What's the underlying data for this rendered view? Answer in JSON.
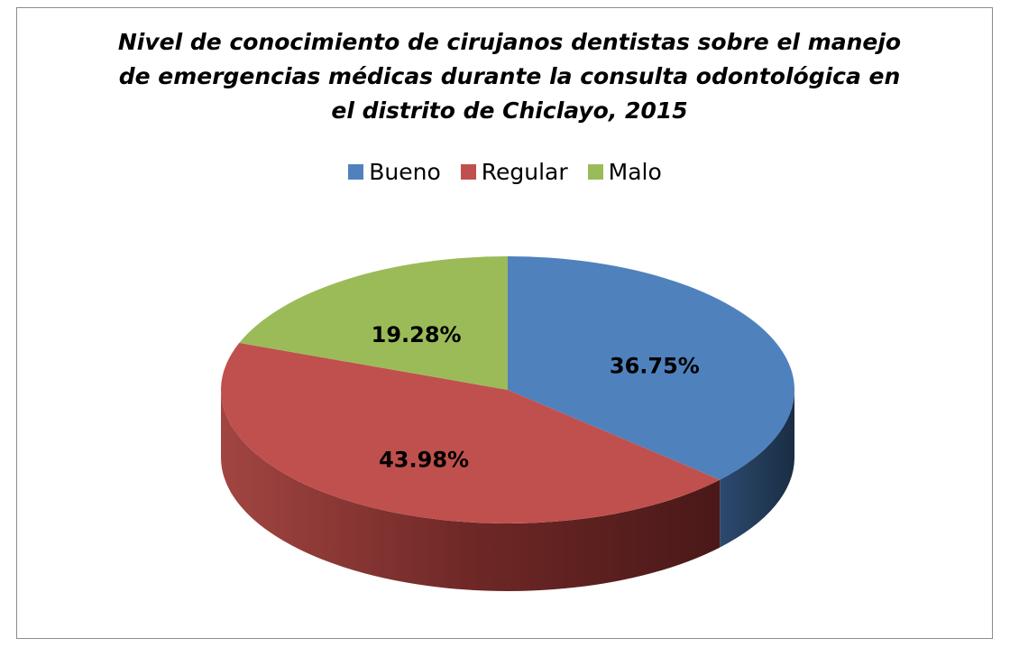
{
  "chart_data": {
    "type": "pie",
    "title": "Nivel de conocimiento de cirujanos dentistas sobre el manejo de emergencias médicas durante la consulta odontológica en el distrito de Chiclayo, 2015",
    "categories": [
      "Bueno",
      "Regular",
      "Malo"
    ],
    "values": [
      36.75,
      43.98,
      19.28
    ],
    "value_labels": [
      "36.75%",
      "43.98%",
      "19.28%"
    ],
    "colors": [
      "#4f81bd",
      "#c0504d",
      "#9bbb59"
    ],
    "legend": "top",
    "three_d": true
  }
}
